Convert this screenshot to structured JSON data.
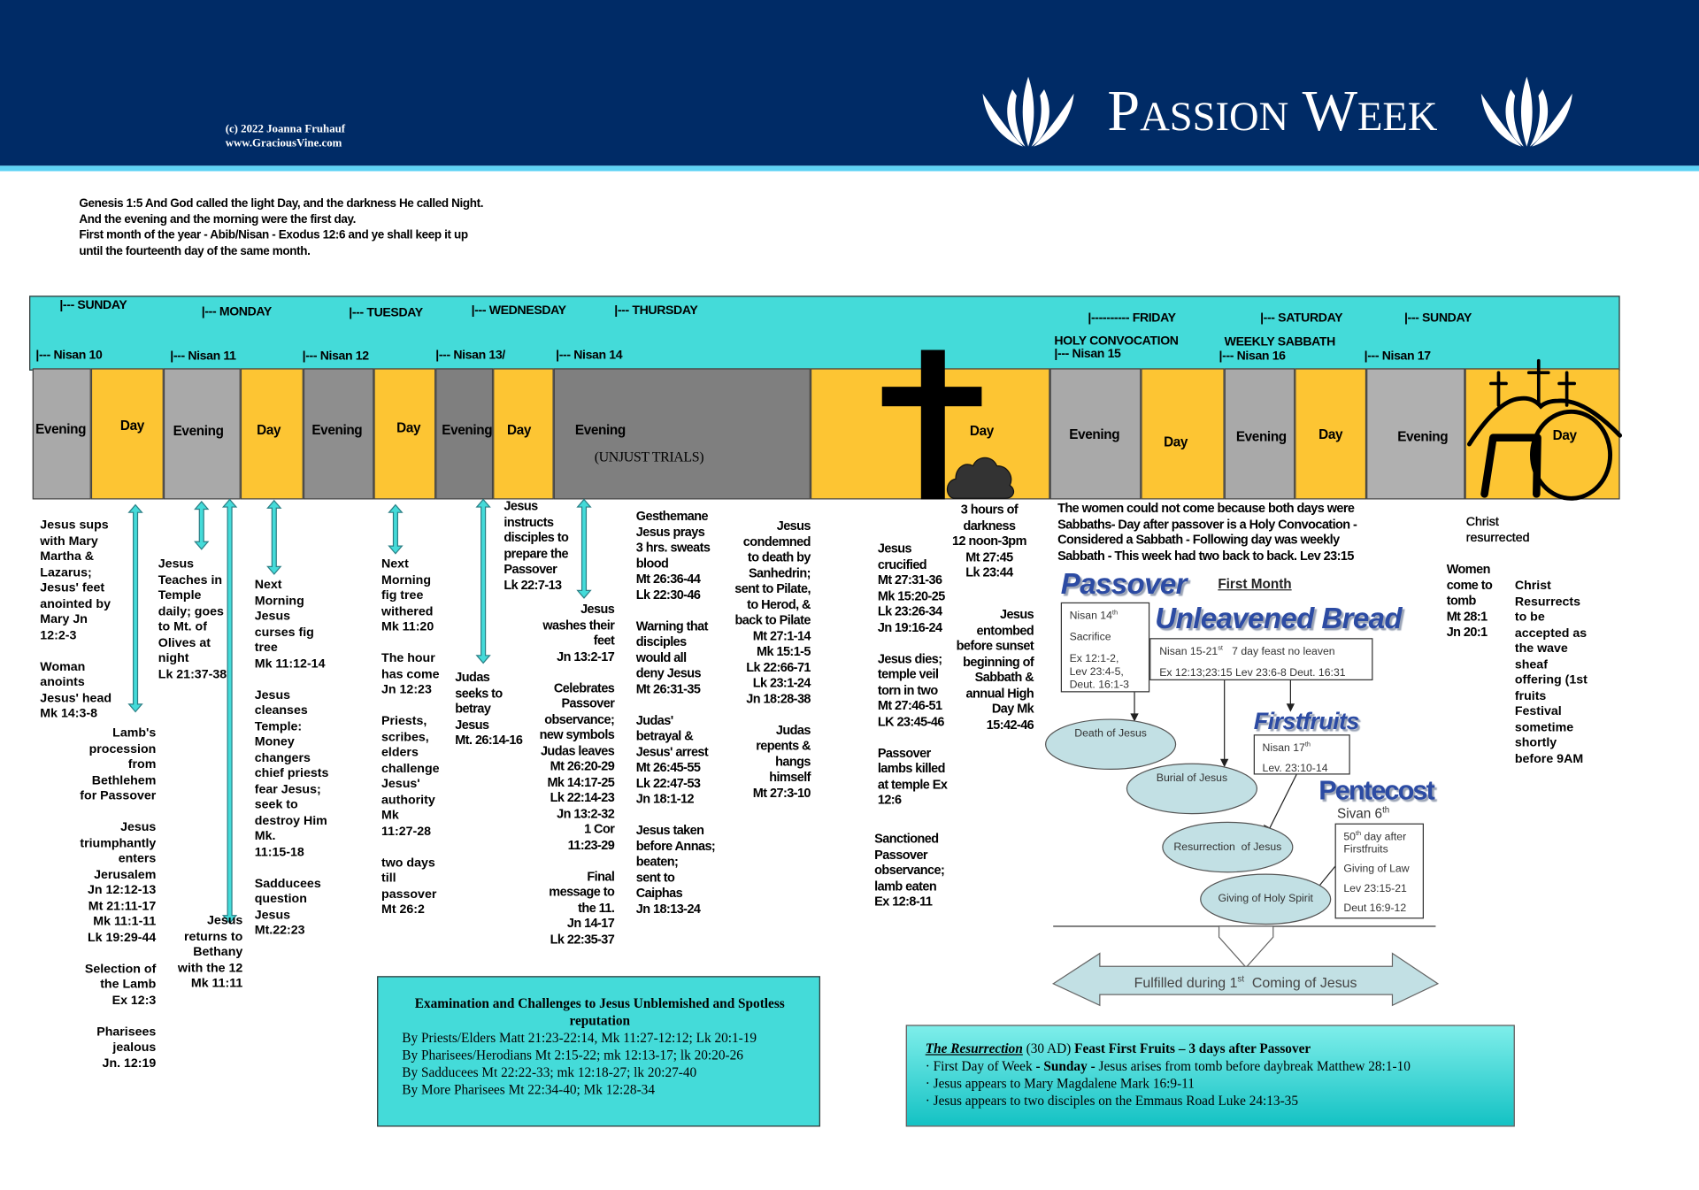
{
  "header": {
    "copyright": [
      "(c) 2022 Joanna Fruhauf",
      "www.GraciousVine.com"
    ],
    "title": "Passion Week",
    "colors": {
      "navy": "#002b66",
      "stripe": "#5fd3f5",
      "band": "#44dbd9",
      "day": "#fdc533",
      "evening": "#a9a9a9"
    }
  },
  "intro": "Genesis 1:5 And God called the light Day, and the darkness He called Night.\nAnd the evening and the morning were the first day.\nFirst month of the year - Abib/Nisan - Exodus 12:6 and ye shall keep it up\nuntil the fourteenth day of the same month.",
  "days": [
    "|--- SUNDAY",
    "|--- MONDAY",
    "|--- TUESDAY",
    "|--- WEDNESDAY",
    "|--- THURSDAY",
    "|---------- FRIDAY",
    "|---  SATURDAY",
    "|--- SUNDAY"
  ],
  "nisan": [
    "|--- Nisan 10",
    "|--- Nisan 11",
    "|--- Nisan 12",
    "|--- Nisan 13/",
    "|--- Nisan 14",
    "|--- Nisan 15",
    "|--- Nisan 16",
    "|--- Nisan 17"
  ],
  "sabbaths": [
    "HOLY CONVOCATION",
    "WEEKLY SABBATH"
  ],
  "blocks": [
    "Evening",
    "Day",
    "Evening",
    "Day",
    "Evening",
    "Day",
    "Evening",
    "Day",
    "Evening",
    "Day",
    "Evening",
    "Day",
    "Evening",
    "Day",
    "Evening",
    "Day"
  ],
  "unjust_trials": "(UNJUST TRIALS)",
  "icons": [
    "lotus-logo-icon",
    "cross-icon",
    "dark-cloud-icon",
    "empty-tomb-icon",
    "double-arrow-icon"
  ],
  "notes": [
    "Jesus sups\nwith Mary\nMartha &\nLazarus;\nJesus' feet\nanointed by\nMary Jn\n12:2-3\n\nWoman\nanoints\nJesus' head\nMk 14:3-8",
    "Lamb's\nprocession\nfrom\nBethlehem\nfor Passover\n\nJesus\ntriumphantly\nenters\nJerusalem\nJn 12:12-13\nMt 21:11-17\nMk 11:1-11\nLk 19:29-44\n\nSelection of\nthe Lamb\nEx 12:3\n\nPharisees\njealous\nJn. 12:19",
    "Jesus\nTeaches in\nTemple\ndaily; goes\nto Mt. of\nOlives at\nnight\nLk 21:37-38",
    "Jesus\nreturns to\nBethany\nwith the 12\nMk 11:11",
    "Next\nMorning\nJesus\ncurses fig\ntree\nMk 11:12-14\n\nJesus\ncleanses\nTemple:\nMoney\nchangers\nchief priests\nfear Jesus;\nseek to\ndestroy Him\nMk.\n11:15-18\n\nSadducees\nquestion\nJesus\nMt.22:23",
    "Next\nMorning\nfig tree\nwithered\nMk 11:20\n\nThe hour\nhas come\nJn 12:23\n\nPriests,\nscribes,\nelders\nchallenge\nJesus'\nauthority\nMk\n11:27-28\n\ntwo days\ntill\npassover\nMt 26:2",
    "Judas\nseeks to\nbetray\nJesus\nMt. 26:14-16",
    "Jesus\ninstructs\ndisciples to\nprepare the\nPassover\nLk 22:7-13",
    "Jesus\nwashes their\nfeet\nJn 13:2-17\n\nCelebrates\nPassover\nobservance;\nnew symbols\nJudas leaves\nMt 26:20-29\nMk 14:17-25\nLk 22:14-23\nJn 13:2-32\n1 Cor\n11:23-29\n\nFinal\nmessage to\nthe 11.\nJn 14-17\nLk 22:35-37",
    "Gesthemane\nJesus prays\n3 hrs. sweats\nblood\nMt 26:36-44\nLk 22:30-46\n\nWarning that\ndisciples\nwould all\ndeny Jesus\nMt 26:31-35\n\nJudas'\nbetrayal &\nJesus' arrest\nMt 26:45-55\nLk 22:47-53\nJn 18:1-12\n\nJesus taken\nbefore Annas;\nbeaten;\nsent to\nCaiphas\nJn 18:13-24",
    "Jesus\ncondemned\nto death by\nSanhedrin;\nsent to Pilate,\nto Herod, &\nback to Pilate\nMt 27:1-14\nMk 15:1-5\nLk 22:66-71\nLk 23:1-24\nJn 18:28-38\n\nJudas\nrepents &\nhangs\nhimself\nMt 27:3-10",
    "Jesus\ncrucified\nMt 27:31-36\nMk 15:20-25\nLk 23:26-34\nJn 19:16-24\n\nJesus dies;\ntemple veil\ntorn in two\nMt 27:46-51\nLK 23:45-46\n\nPassover\nlambs killed\nat temple Ex\n12:6",
    "Sanctioned\nPassover\nobservance;\nlamb eaten\nEx 12:8-11",
    "3 hours of\ndarkness\n12 noon-3pm\nMt 27:45\nLk 23:44",
    "Jesus\nentombed\nbefore sunset\nbeginning of\nSabbath &\nannual High\nDay Mk\n15:42-46",
    "The women could not come because both days were\nSabbaths- Day after passover is a Holy Convocation -\nConsidered a Sabbath - Following day was weekly\nSabbath - This week had two back to back. Lev 23:15",
    "Christ\nresurrected",
    "Women\ncome to\ntomb\nMt 28:1\nJn 20:1",
    "Christ\nResurrects\nto be\naccepted as\nthe wave\nsheaf\noffering (1st\nfruits\nFestival\nsometime\nshortly\nbefore 9AM"
  ],
  "diagram": {
    "passover": "Passover",
    "first_month": "First Month",
    "nisan14": {
      "l1": "Nisan 14",
      "sup": "th",
      "l2": "Sacrifice",
      "l3": "Ex 12:1-2,\nLev 23:4-5,\nDeut. 16:1-3"
    },
    "unleavened": "Unleavened Bread",
    "nisan15": {
      "l1a": "Nisan 15-21",
      "sup": "st",
      "l1b": "   7 day feast no leaven",
      "l2": "Ex 12:13;23:15 Lev 23:6-8 Deut. 16:31"
    },
    "firstfruits": "Firstfruits",
    "nisan17": {
      "l1": "Nisan 17",
      "sup": "th",
      "l2": "Lev. 23:10-14"
    },
    "pentecost": "Pentecost",
    "sivan": {
      "t": "Sivan 6",
      "sup": "th"
    },
    "fiftieth": {
      "a": "50",
      "sup": "th",
      "b": " day after\nFirstfruits",
      "l2": "Giving of Law",
      "l3": "Lev 23:15-21",
      "l4": "Deut 16:9-12"
    },
    "ellipses": [
      "Death of Jesus",
      "Burial of Jesus",
      "Resurrection  of Jesus",
      "Giving of Holy Spirit"
    ],
    "fulfilled": {
      "a": "Fulfilled during 1",
      "sup": "st",
      "b": "  Coming of Jesus"
    }
  },
  "exam": {
    "heading": "Examination and Challenges to Jesus Unblemished and Spotless reputation",
    "lines": [
      "By Priests/Elders  Matt 21:23-22:14, Mk 11:27-12:12; Lk 20:1-19",
      "By Pharisees/Herodians  Mt 2:15-22; mk 12:13-17; lk 20:20-26",
      "By Sadducees Mt 22:22-33; mk 12:18-27; lk 20:27-40",
      "By More Pharisees Mt 22:34-40; Mk 12:28-34"
    ]
  },
  "resurrection": {
    "title": "The Resurrection",
    "year": " (30 AD) ",
    "feast": "Feast First Fruits – 3 days after Passover",
    "b1a": "· First Day of Week ",
    "b1b": "- Sunday -",
    "b1c": " Jesus arises from tomb before daybreak Matthew 28:1-10",
    "b2": "· Jesus appears to Mary Magdalene Mark 16:9-11",
    "b3": "· Jesus appears to two disciples on the Emmaus Road Luke 24:13-35"
  }
}
